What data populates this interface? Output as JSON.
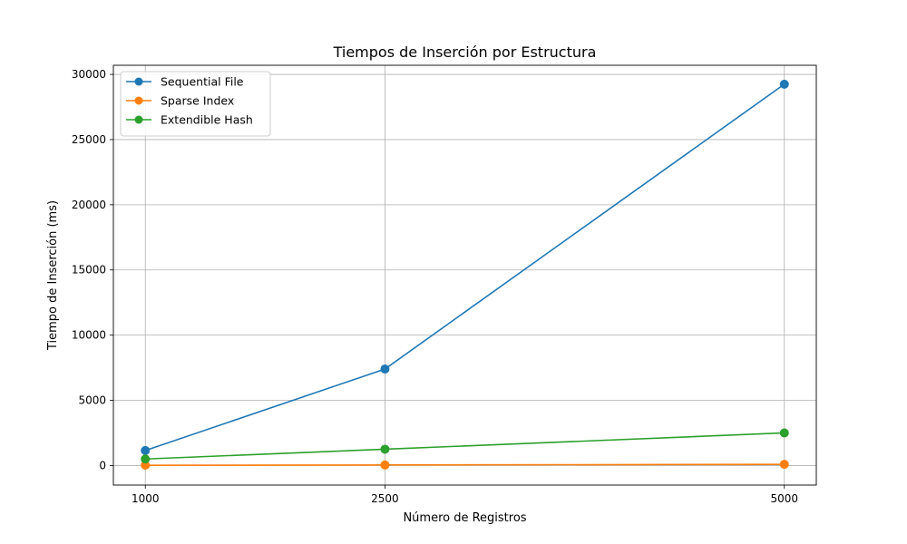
{
  "chart_data": {
    "type": "line",
    "title": "Tiempos de Inserción por Estructura",
    "xlabel": "Número de Registros",
    "ylabel": "Tiempo de Inserción (ms)",
    "categories": [
      "1000",
      "2500",
      "5000"
    ],
    "x": [
      1000,
      2500,
      5000
    ],
    "xlim": [
      800,
      5200
    ],
    "ylim": [
      -1500,
      30700
    ],
    "yticks": [
      0,
      5000,
      10000,
      15000,
      20000,
      25000,
      30000
    ],
    "grid": true,
    "legend_position": "top-left",
    "series": [
      {
        "name": "Sequential File",
        "color": "#1f77b4",
        "values": [
          1150,
          7400,
          29250
        ]
      },
      {
        "name": "Sparse Index",
        "color": "#ff7f0e",
        "values": [
          20,
          40,
          90
        ]
      },
      {
        "name": "Extendible Hash",
        "color": "#2ca02c",
        "values": [
          500,
          1250,
          2500
        ]
      }
    ]
  }
}
